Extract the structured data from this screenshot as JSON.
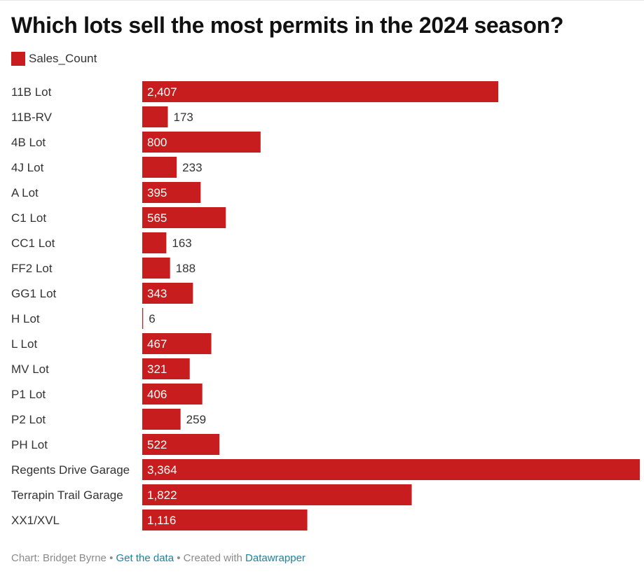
{
  "chart_data": {
    "type": "bar",
    "orientation": "horizontal",
    "title": "Which lots sell the most permits in the 2024 season?",
    "legend": [
      "Sales_Count"
    ],
    "legend_position": "top-left",
    "categories": [
      "11B Lot",
      "11B-RV",
      "4B Lot",
      "4J Lot",
      "A Lot",
      "C1 Lot",
      "CC1 Lot",
      "FF2 Lot",
      "GG1 Lot",
      "H Lot",
      "L Lot",
      "MV Lot",
      "P1 Lot",
      "P2 Lot",
      "PH Lot",
      "Regents Drive Garage",
      "Terrapin Trail Garage",
      "XX1/XVL"
    ],
    "series": [
      {
        "name": "Sales_Count",
        "values": [
          2407,
          173,
          800,
          233,
          395,
          565,
          163,
          188,
          343,
          6,
          467,
          321,
          406,
          259,
          522,
          3364,
          1822,
          1116
        ],
        "labels": [
          "2,407",
          "173",
          "800",
          "233",
          "395",
          "565",
          "163",
          "188",
          "343",
          "6",
          "467",
          "321",
          "406",
          "259",
          "522",
          "3,364",
          "1,822",
          "1,116"
        ]
      }
    ],
    "xlim": [
      0,
      3364
    ],
    "grid": false,
    "colors": {
      "bar": "#c81d1f",
      "label_inside": "#ffffff",
      "label_outside": "#333333"
    }
  },
  "footer": {
    "byline": "Chart: Bridget Byrne",
    "sep1": " • ",
    "data_link": "Get the data",
    "sep2": " • Created with ",
    "tool_link": "Datawrapper"
  }
}
